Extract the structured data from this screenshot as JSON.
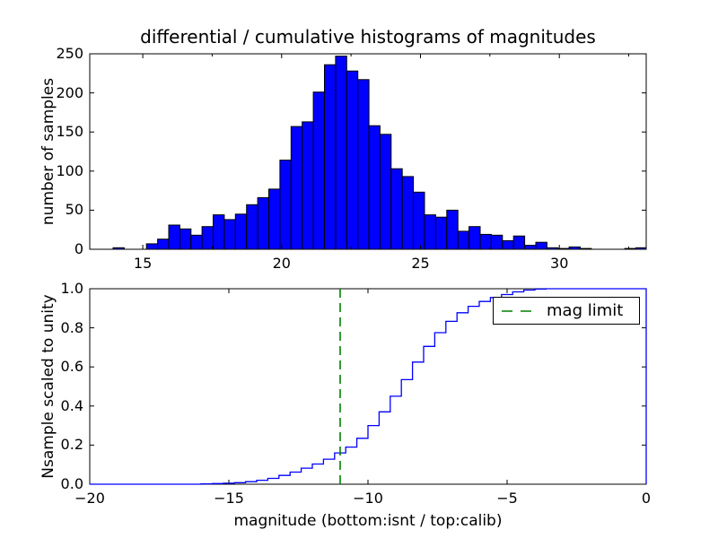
{
  "chart_data": [
    {
      "type": "bar",
      "role": "differential-histogram-top",
      "title": "differential / cumulative histograms of magnitudes",
      "ylabel": "number of samples",
      "xlim": [
        13.09,
        33.13
      ],
      "ylim": [
        0,
        250
      ],
      "xticks": {
        "values": [
          15,
          20,
          25,
          30
        ],
        "labels": [
          "15",
          "20",
          "25",
          "30"
        ]
      },
      "xticks_minor": [
        17.5,
        22.5,
        27.5,
        32.5
      ],
      "yticks": {
        "values": [
          0,
          50,
          100,
          150,
          200,
          250
        ],
        "labels": [
          "0",
          "50",
          "100",
          "150",
          "200",
          "250"
        ]
      },
      "bins": {
        "start": 13.93,
        "width": 0.4006
      },
      "counts": [
        2,
        0,
        0,
        7,
        13,
        31,
        26,
        18,
        29,
        44,
        38,
        45,
        57,
        66,
        77,
        114,
        157,
        163,
        201,
        236,
        247,
        228,
        217,
        158,
        147,
        103,
        93,
        73,
        44,
        41,
        50,
        23,
        29,
        19,
        18,
        11,
        17,
        5,
        9,
        2,
        1,
        3,
        1,
        0,
        0,
        0,
        1,
        2,
        0,
        0
      ],
      "bar_color": "#0000ff",
      "bar_edge_color": "#000000",
      "grid": false
    },
    {
      "type": "line",
      "role": "cumulative-histogram-bottom",
      "style": "step",
      "ylabel": "Nsample scaled to unity",
      "xlabel": "magnitude (bottom:isnt / top:calib)",
      "xlim": [
        -20,
        0
      ],
      "ylim": [
        0.0,
        1.0
      ],
      "xticks": {
        "values": [
          -20,
          -15,
          -10,
          -5,
          0
        ],
        "labels": [
          "−20",
          "−15",
          "−10",
          "−5",
          "0"
        ]
      },
      "yticks": {
        "values": [
          0.0,
          0.2,
          0.4,
          0.6,
          0.8,
          1.0
        ],
        "labels": [
          "0.0",
          "0.2",
          "0.4",
          "0.6",
          "0.8",
          "1.0"
        ]
      },
      "bins": {
        "start": -20,
        "width": 0.4
      },
      "cumulative_fraction": [
        0,
        0,
        0,
        0,
        0,
        0,
        0,
        0,
        0,
        0,
        0.002,
        0.003,
        0.005,
        0.008,
        0.013,
        0.02,
        0.03,
        0.045,
        0.062,
        0.082,
        0.103,
        0.128,
        0.16,
        0.19,
        0.235,
        0.3,
        0.37,
        0.45,
        0.535,
        0.625,
        0.705,
        0.775,
        0.833,
        0.877,
        0.91,
        0.935,
        0.955,
        0.97,
        0.984,
        0.993,
        0.998,
        1,
        1,
        1,
        1,
        1,
        1,
        1,
        1,
        1
      ],
      "line_color": "#0000ff",
      "legend": {
        "label": "mag limit",
        "position": "upper right"
      },
      "mag_limit": {
        "x": -11.0,
        "color": "#008000",
        "linestyle": "dashed"
      },
      "grid": false
    }
  ]
}
